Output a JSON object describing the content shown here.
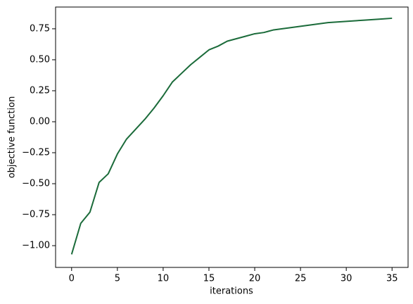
{
  "chart_data": {
    "type": "line",
    "x_label": "iterations",
    "y_label": "objective function",
    "x": [
      0,
      1,
      2,
      3,
      4,
      5,
      6,
      7,
      8,
      9,
      10,
      11,
      12,
      13,
      14,
      15,
      16,
      17,
      18,
      19,
      20,
      21,
      22,
      23,
      24,
      25,
      26,
      27,
      28,
      29,
      30,
      31,
      32,
      33,
      34,
      35
    ],
    "values": [
      -1.07,
      -0.82,
      -0.73,
      -0.49,
      -0.42,
      -0.26,
      -0.14,
      -0.06,
      0.02,
      0.11,
      0.21,
      0.32,
      0.39,
      0.46,
      0.52,
      0.58,
      0.61,
      0.65,
      0.67,
      0.69,
      0.71,
      0.72,
      0.74,
      0.75,
      0.76,
      0.77,
      0.78,
      0.79,
      0.8,
      0.805,
      0.81,
      0.815,
      0.82,
      0.825,
      0.83,
      0.835
    ],
    "color": "#1b6b3a",
    "xlim": [
      -1.75,
      36.75
    ],
    "xticks": [
      0,
      5,
      10,
      15,
      20,
      25,
      30,
      35
    ],
    "ylim": [
      -1.1755,
      0.9255
    ],
    "yticks": [
      {
        "value": -1,
        "label": "−1.00"
      },
      {
        "value": -0.75,
        "label": "−0.75"
      },
      {
        "value": -0.5,
        "label": "−0.50"
      },
      {
        "value": -0.25,
        "label": "−0.25"
      },
      {
        "value": 0,
        "label": "0.00"
      },
      0.25,
      {
        "value": 0.5,
        "label": "0.50"
      },
      0.75
    ]
  }
}
